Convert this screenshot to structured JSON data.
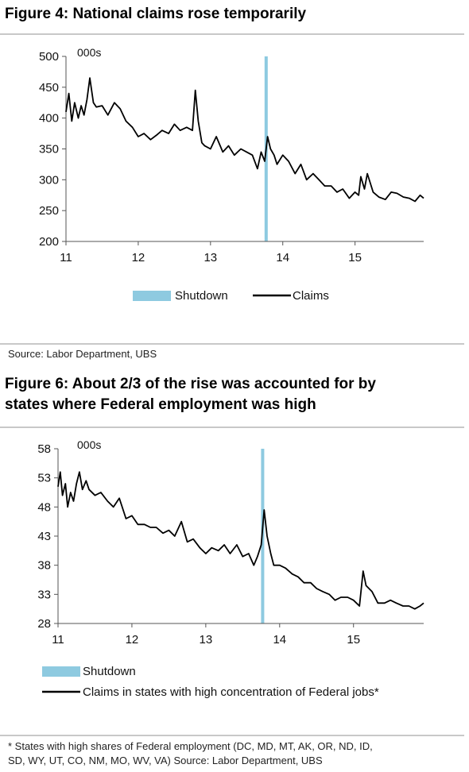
{
  "figures": [
    {
      "title": "Figure 4: National claims rose temporarily",
      "unit_label": "000s",
      "source": "Source:  Labor Department, UBS",
      "legend": {
        "shutdown": "Shutdown",
        "series": "Claims"
      }
    },
    {
      "title_line1": "Figure 6: About 2/3 of the rise was accounted for by",
      "title_line2": "states where Federal employment was high",
      "unit_label": "000s",
      "legend": {
        "shutdown": "Shutdown",
        "series": "Claims in states with high concentration of Federal jobs*"
      },
      "footnote_line1": "* States with high shares of Federal employment (DC, MD, MT, AK, OR, ND, ID,",
      "footnote_line2": "SD, WY, UT, CO, NM, MO, WV, VA)  Source:  Labor Department, UBS"
    }
  ],
  "colors": {
    "shutdown": "#8ecae0",
    "line": "#000000",
    "axis": "#555555",
    "rule": "#c8c8c8"
  },
  "chart_data": [
    {
      "type": "line",
      "title": "Figure 4: National claims rose temporarily",
      "ylabel": "000s",
      "xlim": [
        11,
        15.95
      ],
      "ylim": [
        200,
        500
      ],
      "xticks": [
        11,
        12,
        13,
        14,
        15
      ],
      "yticks": [
        200,
        250,
        300,
        350,
        400,
        450,
        500
      ],
      "shutdown_x": 13.77,
      "series": [
        {
          "name": "Claims",
          "x": [
            11.0,
            11.04,
            11.08,
            11.12,
            11.17,
            11.21,
            11.25,
            11.29,
            11.33,
            11.38,
            11.42,
            11.5,
            11.58,
            11.67,
            11.75,
            11.83,
            11.92,
            12.0,
            12.08,
            12.17,
            12.25,
            12.33,
            12.42,
            12.5,
            12.58,
            12.67,
            12.75,
            12.79,
            12.83,
            12.88,
            12.92,
            13.0,
            13.08,
            13.17,
            13.25,
            13.33,
            13.42,
            13.5,
            13.58,
            13.65,
            13.7,
            13.75,
            13.79,
            13.83,
            13.88,
            13.92,
            14.0,
            14.08,
            14.17,
            14.25,
            14.33,
            14.42,
            14.5,
            14.58,
            14.67,
            14.75,
            14.83,
            14.92,
            15.0,
            15.05,
            15.08,
            15.13,
            15.17,
            15.25,
            15.33,
            15.42,
            15.5,
            15.58,
            15.67,
            15.75,
            15.83,
            15.9,
            15.95
          ],
          "values": [
            410,
            440,
            395,
            425,
            400,
            420,
            405,
            430,
            465,
            425,
            418,
            420,
            405,
            425,
            415,
            395,
            385,
            370,
            375,
            365,
            372,
            380,
            375,
            390,
            380,
            385,
            380,
            445,
            395,
            360,
            355,
            350,
            370,
            345,
            355,
            340,
            350,
            345,
            340,
            318,
            345,
            330,
            370,
            350,
            340,
            325,
            340,
            330,
            310,
            325,
            300,
            310,
            300,
            290,
            290,
            280,
            285,
            270,
            280,
            275,
            305,
            285,
            310,
            280,
            272,
            268,
            280,
            278,
            272,
            270,
            265,
            275,
            270
          ]
        }
      ]
    },
    {
      "type": "line",
      "title": "Figure 6: About 2/3 of the rise was accounted for by states where Federal employment was high",
      "ylabel": "000s",
      "xlim": [
        11,
        15.95
      ],
      "ylim": [
        28,
        58
      ],
      "xticks": [
        11,
        12,
        13,
        14,
        15
      ],
      "yticks": [
        28,
        33,
        38,
        43,
        48,
        53,
        58
      ],
      "shutdown_x": 13.77,
      "series": [
        {
          "name": "Claims in states with high concentration of Federal jobs*",
          "x": [
            11.0,
            11.03,
            11.06,
            11.1,
            11.13,
            11.17,
            11.21,
            11.25,
            11.29,
            11.33,
            11.38,
            11.42,
            11.5,
            11.58,
            11.67,
            11.75,
            11.83,
            11.92,
            12.0,
            12.08,
            12.17,
            12.25,
            12.33,
            12.42,
            12.5,
            12.58,
            12.67,
            12.75,
            12.83,
            12.92,
            13.0,
            13.08,
            13.17,
            13.25,
            13.33,
            13.42,
            13.5,
            13.58,
            13.65,
            13.7,
            13.75,
            13.79,
            13.83,
            13.88,
            13.92,
            14.0,
            14.08,
            14.17,
            14.25,
            14.33,
            14.42,
            14.5,
            14.58,
            14.67,
            14.75,
            14.83,
            14.92,
            15.0,
            15.08,
            15.13,
            15.17,
            15.25,
            15.33,
            15.42,
            15.5,
            15.58,
            15.67,
            15.75,
            15.83,
            15.9,
            15.95
          ],
          "values": [
            51.5,
            54,
            50,
            52,
            48,
            50.5,
            49,
            52,
            54,
            51,
            52.5,
            51,
            50,
            50.5,
            49,
            48,
            49.5,
            46,
            46.5,
            45,
            45,
            44.5,
            44.5,
            43.5,
            44,
            43,
            45.5,
            42,
            42.5,
            41,
            40,
            41,
            40.5,
            41.5,
            40,
            41.5,
            39.5,
            40,
            38,
            39.5,
            41.5,
            47.5,
            43,
            40,
            38,
            38,
            37.5,
            36.5,
            36,
            35,
            35,
            34,
            33.5,
            33,
            32,
            32.5,
            32.5,
            32,
            31,
            37,
            34.5,
            33.5,
            31.5,
            31.5,
            32,
            31.5,
            31,
            31,
            30.5,
            31,
            31.5
          ]
        }
      ]
    }
  ]
}
